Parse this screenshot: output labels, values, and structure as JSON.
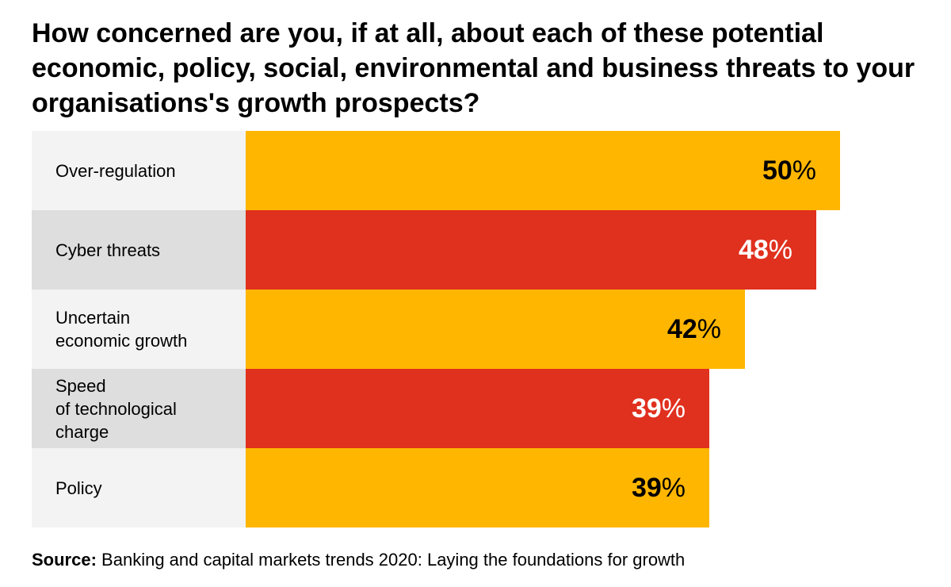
{
  "title": "How concerned are you, if at all, about each of these potential economic, policy, social, environmental and business threats to your organisations's growth prospects?",
  "chart_data": {
    "type": "bar",
    "orientation": "horizontal",
    "categories": [
      "Over-regulation",
      "Cyber threats",
      "Uncertain\neconomic growth",
      "Speed\nof technological\ncharge",
      "Policy"
    ],
    "values": [
      50,
      48,
      42,
      39,
      39
    ],
    "value_labels": [
      "50",
      "48",
      "42",
      "39",
      "39"
    ],
    "value_suffix": "%",
    "xlim": [
      0,
      50
    ],
    "bar_colors": [
      "#FFB600",
      "#E0301E",
      "#FFB600",
      "#E0301E",
      "#FFB600"
    ],
    "label_text_colors": [
      "#000000",
      "#FFFFFF",
      "#000000",
      "#FFFFFF",
      "#000000"
    ],
    "label_bg_colors": [
      "#F3F3F3",
      "#DEDEDE",
      "#F3F3F3",
      "#DEDEDE",
      "#F3F3F3"
    ],
    "grid": false
  },
  "source": {
    "label": "Source:",
    "text": "Banking and capital markets trends 2020: Laying the foundations for growth"
  }
}
